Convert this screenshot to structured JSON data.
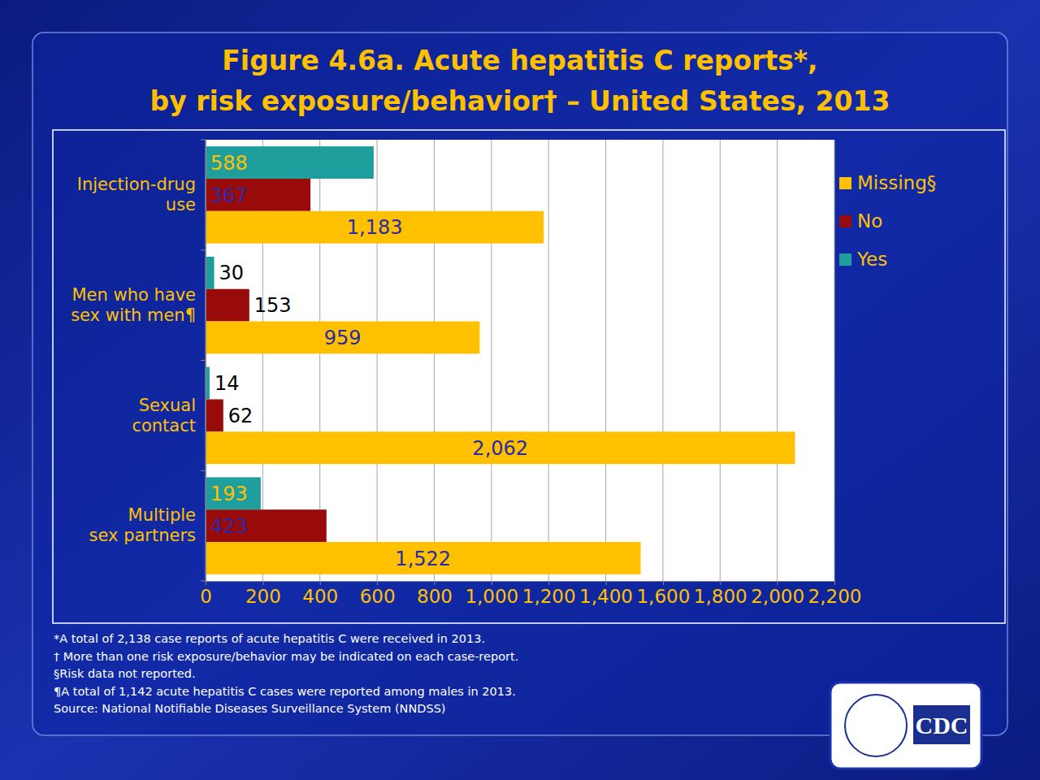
{
  "chart_data": {
    "type": "bar",
    "orientation": "horizontal",
    "title": "Figure 4.6a. Acute hepatitis C reports*,\nby risk exposure/behavior† – United States, 2013",
    "categories": [
      "Injection-drug\nuse",
      "Men who have\nsex with men¶",
      "Sexual\ncontact",
      "Multiple\nsex partners"
    ],
    "series": [
      {
        "name": "Yes",
        "color": "#1f9e9e",
        "values": [
          588,
          30,
          14,
          193
        ]
      },
      {
        "name": "No",
        "color": "#990b0b",
        "values": [
          367,
          153,
          62,
          423
        ]
      },
      {
        "name": "Missing§",
        "color": "#ffc000",
        "values": [
          1183,
          959,
          2062,
          1522
        ],
        "value_labels": [
          "1,183",
          "959",
          "2,062",
          "1,522"
        ]
      }
    ],
    "xlim": [
      0,
      2200
    ],
    "xticks": [
      0,
      200,
      400,
      600,
      800,
      {
        "value": 1000,
        "label": "1,000"
      },
      {
        "value": 1200,
        "label": "1,200"
      },
      {
        "value": 1400,
        "label": "1,400"
      },
      {
        "value": 1600,
        "label": "1,600"
      },
      {
        "value": 1800,
        "label": "1,800"
      },
      {
        "value": 2000,
        "label": "2,000"
      },
      {
        "value": 2200,
        "label": "2,200"
      }
    ],
    "grid": true,
    "legend": "right",
    "data_labels": true,
    "footnotes": [
      "*A total of 2,138 case reports of acute hepatitis C were received in 2013.",
      "† More than one risk exposure/behavior may be indicated on each case-report.",
      "§Risk data not reported.",
      "¶A total of 1,142 acute hepatitis C cases were reported among males in 2013.",
      "Source: National Notifiable Diseases Surveillance System (NNDSS)"
    ],
    "logo_text": "CDC"
  }
}
